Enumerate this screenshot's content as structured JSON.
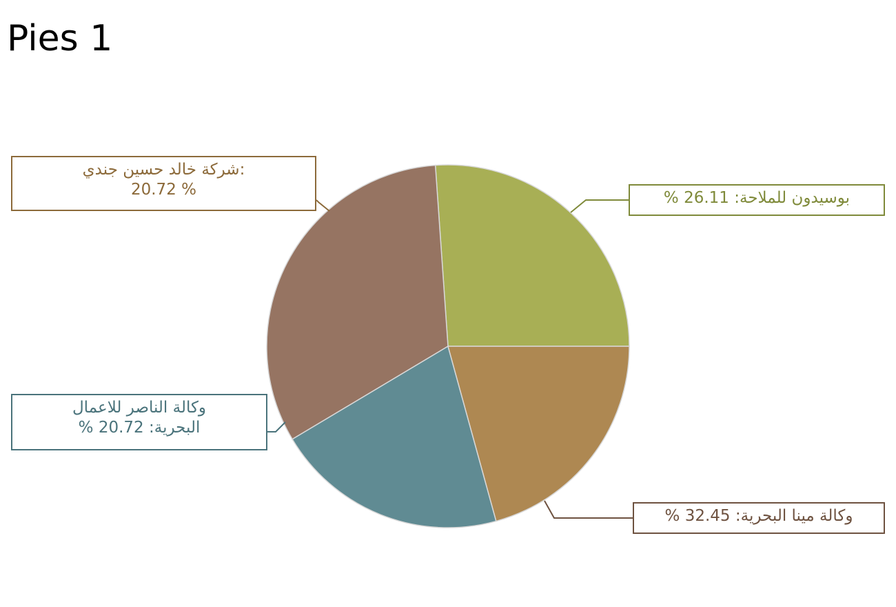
{
  "chart_data": {
    "type": "pie",
    "title": "Pies 1",
    "slices": [
      {
        "label": "بوسيدون  للملاحة",
        "value": 26.11,
        "color": "#a8af55",
        "label_color": "#7f8a3a",
        "callout_lines": [
          "% بوسيدون  للملاحة:  26.11"
        ]
      },
      {
        "label": "وكالة مينا البحرية",
        "value": 32.45,
        "color": "#967462",
        "label_color": "#6e5240",
        "callout_lines": [
          "% وكالة مينا البحرية:  32.45"
        ]
      },
      {
        "label": "وكالة الناصر للاعمال البحرية",
        "value": 20.72,
        "color": "#608b93",
        "label_color": "#4a737b",
        "callout_lines": [
          "وكالة الناصر للاعمال",
          "% البحرية:  20.72"
        ]
      },
      {
        "label": "شركة خالد حسين جندي",
        "value": 20.72,
        "color": "#ae8852",
        "label_color": "#8c6a3a",
        "callout_lines": [
          "شركة خالد حسين جندي:",
          "20.72 %"
        ]
      }
    ],
    "start_angle_deg": 0,
    "direction": "clockwise",
    "legend": "none"
  }
}
